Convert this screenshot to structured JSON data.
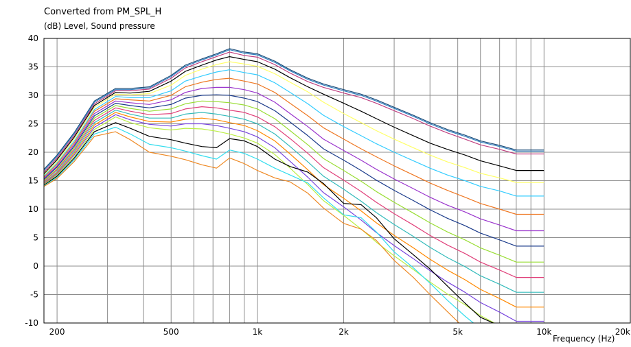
{
  "chart_data": {
    "type": "line",
    "title": "Converted from PM_SPL_H",
    "ylabel": "(dB)  Level, Sound pressure",
    "xlabel": "Frequency  (Hz)",
    "xscale": "log",
    "xlim": [
      180,
      20000
    ],
    "ylim": [
      -10,
      40
    ],
    "grid": true,
    "x_tick_labels": [
      {
        "value": 200,
        "label": "200"
      },
      {
        "value": 500,
        "label": "500"
      },
      {
        "value": 1000,
        "label": "1k"
      },
      {
        "value": 2000,
        "label": "2k"
      },
      {
        "value": 5000,
        "label": "5k"
      },
      {
        "value": 10000,
        "label": "10k"
      },
      {
        "value": 20000,
        "label": "20k"
      }
    ],
    "y_ticks": [
      40,
      35,
      30,
      25,
      20,
      15,
      10,
      5,
      0,
      -5,
      -10
    ],
    "x": [
      180,
      200,
      230,
      270,
      320,
      360,
      420,
      500,
      560,
      640,
      720,
      800,
      900,
      1000,
      1150,
      1300,
      1500,
      1700,
      2000,
      2300,
      2600,
      3000,
      3500,
      4000,
      4600,
      5300,
      6000,
      7000,
      8000,
      9000,
      10000
    ],
    "series": [
      {
        "color": "#1f4e79",
        "values": [
          17.0,
          19.5,
          23.5,
          29.0,
          31.2,
          31.2,
          31.5,
          33.5,
          35.3,
          36.4,
          37.3,
          38.2,
          37.6,
          37.3,
          36.0,
          34.5,
          33.0,
          32.0,
          31.0,
          30.2,
          29.2,
          27.9,
          26.5,
          25.2,
          24.0,
          23.0,
          22.0,
          21.2,
          20.4,
          20.4,
          20.4
        ]
      },
      {
        "color": "#2f7fc1",
        "values": [
          16.8,
          19.3,
          23.3,
          28.8,
          31.0,
          31.0,
          31.3,
          33.3,
          35.1,
          36.2,
          37.1,
          38.0,
          37.4,
          37.1,
          35.8,
          34.3,
          32.8,
          31.8,
          30.8,
          30.0,
          29.0,
          27.7,
          26.3,
          25.0,
          23.8,
          22.8,
          21.8,
          21.0,
          20.2,
          20.2,
          20.2
        ]
      },
      {
        "color": "#c04080",
        "values": [
          16.5,
          19.0,
          23.0,
          28.5,
          30.8,
          30.8,
          31.1,
          33.0,
          34.8,
          35.9,
          36.8,
          37.6,
          37.0,
          36.7,
          35.4,
          33.9,
          32.4,
          31.4,
          30.4,
          29.6,
          28.6,
          27.3,
          25.9,
          24.6,
          23.4,
          22.3,
          21.3,
          20.5,
          19.7,
          19.7,
          19.7
        ]
      },
      {
        "color": "#000000",
        "values": [
          16.2,
          18.7,
          22.7,
          28.2,
          30.5,
          30.4,
          30.7,
          32.5,
          34.2,
          35.3,
          36.2,
          36.8,
          36.3,
          35.9,
          34.6,
          33.1,
          31.5,
          30.2,
          28.6,
          27.2,
          25.9,
          24.4,
          22.9,
          21.6,
          20.5,
          19.5,
          18.5,
          17.6,
          16.8,
          16.8,
          16.8
        ]
      },
      {
        "color": "#ffff66",
        "values": [
          16.0,
          18.4,
          22.4,
          27.9,
          30.2,
          30.1,
          30.3,
          31.8,
          33.5,
          34.6,
          35.4,
          35.9,
          35.5,
          35.1,
          33.8,
          32.3,
          30.6,
          28.8,
          26.8,
          25.2,
          23.8,
          22.3,
          20.8,
          19.5,
          18.3,
          17.3,
          16.3,
          15.5,
          14.7,
          14.7,
          14.7
        ]
      },
      {
        "color": "#33ccff",
        "values": [
          15.8,
          18.1,
          22.0,
          27.5,
          29.8,
          29.6,
          29.6,
          30.8,
          32.5,
          33.4,
          34.1,
          34.5,
          34.0,
          33.6,
          32.2,
          30.5,
          28.5,
          26.5,
          24.5,
          22.9,
          21.5,
          20.0,
          18.5,
          17.2,
          16.0,
          15.0,
          14.0,
          13.2,
          12.3,
          12.3,
          12.3
        ]
      },
      {
        "color": "#ee7722",
        "values": [
          15.6,
          17.9,
          21.7,
          27.2,
          29.4,
          29.2,
          29.0,
          30.0,
          31.5,
          32.3,
          32.8,
          33.0,
          32.5,
          32.0,
          30.5,
          28.6,
          26.4,
          24.3,
          22.3,
          20.6,
          19.2,
          17.6,
          16.0,
          14.6,
          13.3,
          12.1,
          11.0,
          10.0,
          9.1,
          9.1,
          9.1
        ]
      },
      {
        "color": "#9933cc",
        "values": [
          15.4,
          17.6,
          21.4,
          26.8,
          29.0,
          28.7,
          28.4,
          29.2,
          30.5,
          31.2,
          31.4,
          31.4,
          31.0,
          30.4,
          28.8,
          26.8,
          24.5,
          22.3,
          20.3,
          18.6,
          17.0,
          15.3,
          13.6,
          12.1,
          10.7,
          9.5,
          8.3,
          7.2,
          6.2,
          6.2,
          6.2
        ]
      },
      {
        "color": "#1a3a8a",
        "values": [
          15.2,
          17.4,
          21.1,
          26.4,
          28.6,
          28.2,
          27.8,
          28.4,
          29.5,
          30.0,
          30.1,
          30.0,
          29.5,
          28.9,
          27.3,
          25.3,
          22.9,
          20.6,
          18.6,
          16.8,
          15.1,
          13.3,
          11.5,
          9.9,
          8.4,
          7.1,
          5.8,
          4.6,
          3.5,
          3.5,
          3.5
        ]
      },
      {
        "color": "#99dd33",
        "values": [
          15.0,
          17.1,
          20.8,
          26.0,
          28.2,
          27.7,
          27.2,
          27.6,
          28.5,
          29.0,
          28.9,
          28.7,
          28.3,
          27.6,
          25.9,
          23.8,
          21.3,
          18.9,
          16.8,
          14.9,
          13.1,
          11.2,
          9.3,
          7.6,
          6.0,
          4.6,
          3.2,
          1.9,
          0.7,
          0.7,
          0.7
        ]
      },
      {
        "color": "#e0407a",
        "values": [
          14.8,
          16.9,
          20.5,
          25.6,
          27.8,
          27.2,
          26.6,
          26.8,
          27.6,
          28.0,
          27.8,
          27.4,
          27.0,
          26.2,
          24.5,
          22.4,
          19.8,
          17.3,
          15.1,
          13.1,
          11.2,
          9.2,
          7.2,
          5.4,
          3.7,
          2.2,
          0.7,
          -0.7,
          -2.0,
          -2.0,
          -2.0
        ]
      },
      {
        "color": "#33bbbb",
        "values": [
          14.6,
          16.6,
          20.2,
          25.2,
          27.4,
          26.7,
          26.0,
          26.0,
          26.7,
          27.0,
          26.7,
          26.3,
          25.8,
          25.0,
          23.2,
          21.0,
          18.3,
          15.8,
          13.5,
          11.4,
          9.4,
          7.3,
          5.2,
          3.3,
          1.5,
          -0.1,
          -1.7,
          -3.2,
          -4.6,
          -4.6,
          -4.6
        ]
      },
      {
        "color": "#ff8800",
        "values": [
          14.5,
          16.4,
          19.9,
          24.8,
          27.0,
          26.2,
          25.4,
          25.3,
          25.8,
          26.0,
          25.7,
          25.2,
          24.7,
          23.8,
          22.0,
          19.7,
          16.9,
          14.3,
          11.9,
          9.7,
          7.6,
          5.4,
          3.2,
          1.2,
          -0.7,
          -2.4,
          -4.1,
          -5.7,
          -7.2,
          -7.2,
          -7.2
        ]
      },
      {
        "color": "#7744dd",
        "values": [
          14.4,
          16.2,
          19.6,
          24.4,
          26.6,
          25.7,
          24.9,
          24.6,
          25.0,
          25.0,
          24.7,
          24.2,
          23.6,
          22.7,
          20.8,
          18.4,
          15.6,
          12.9,
          10.4,
          8.1,
          5.9,
          3.6,
          1.3,
          -0.8,
          -2.8,
          -4.6,
          -6.4,
          -8.1,
          -9.7,
          -9.7,
          -9.7
        ]
      },
      {
        "color": "#bbee44",
        "values": [
          14.3,
          16.0,
          19.3,
          24.0,
          26.2,
          25.2,
          24.3,
          23.9,
          24.2,
          24.1,
          23.7,
          23.2,
          22.5,
          21.6,
          19.6,
          17.2,
          14.3,
          11.5,
          8.9,
          6.5,
          4.2,
          1.8,
          -0.6,
          -2.8,
          -4.9,
          -6.8,
          -8.7,
          -10.5,
          -12.2,
          -12.2,
          -12.2
        ]
      },
      {
        "color": "#000000",
        "values": [
          14.2,
          15.8,
          19.0,
          23.6,
          25.2,
          24.2,
          22.8,
          22.2,
          21.6,
          21.0,
          20.8,
          22.4,
          22.0,
          21.0,
          18.8,
          17.5,
          16.5,
          14.5,
          11.0,
          10.8,
          8.5,
          4.8,
          2.0,
          -0.5,
          -3.5,
          -6.5,
          -9.0,
          -10.5,
          -12.5,
          -12.5,
          -12.5
        ]
      },
      {
        "color": "#33ddee",
        "values": [
          14.1,
          15.6,
          18.7,
          23.2,
          24.4,
          23.2,
          21.4,
          20.8,
          20.2,
          19.4,
          18.8,
          20.4,
          19.8,
          18.8,
          17.2,
          16.0,
          14.6,
          12.0,
          9.0,
          8.5,
          6.0,
          2.5,
          -0.3,
          -3.0,
          -6.0,
          -8.8,
          -11.0,
          -12.0,
          -12.0,
          -12.0,
          -12.0
        ]
      },
      {
        "color": "#ee8822",
        "values": [
          14.0,
          15.4,
          18.4,
          22.8,
          23.6,
          22.2,
          20.0,
          19.3,
          18.7,
          17.8,
          17.2,
          19.0,
          18.0,
          16.8,
          15.5,
          14.8,
          12.8,
          10.2,
          7.5,
          6.5,
          4.5,
          1.0,
          -2.0,
          -5.0,
          -8.0,
          -11.0,
          -12.0,
          -12.0,
          -12.0,
          -12.0,
          -12.0
        ]
      }
    ]
  }
}
